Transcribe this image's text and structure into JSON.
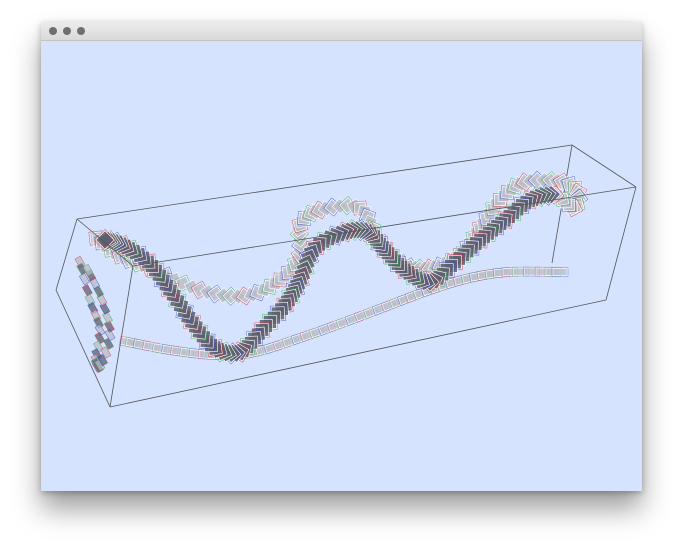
{
  "window": {
    "controls": [
      "close",
      "minimize",
      "zoom"
    ],
    "background_color": "#d6e3ff"
  },
  "scene": {
    "description_icons": [
      "bounding-box",
      "tube-path",
      "projection-shadow"
    ],
    "colors": {
      "tube_light": "#b9bcc6",
      "tube_dark": "#5e5f70",
      "edge_red": "#e0303a",
      "edge_green": "#2fb04a",
      "edge_blue": "#3046e0",
      "box_line": "#555555"
    }
  }
}
